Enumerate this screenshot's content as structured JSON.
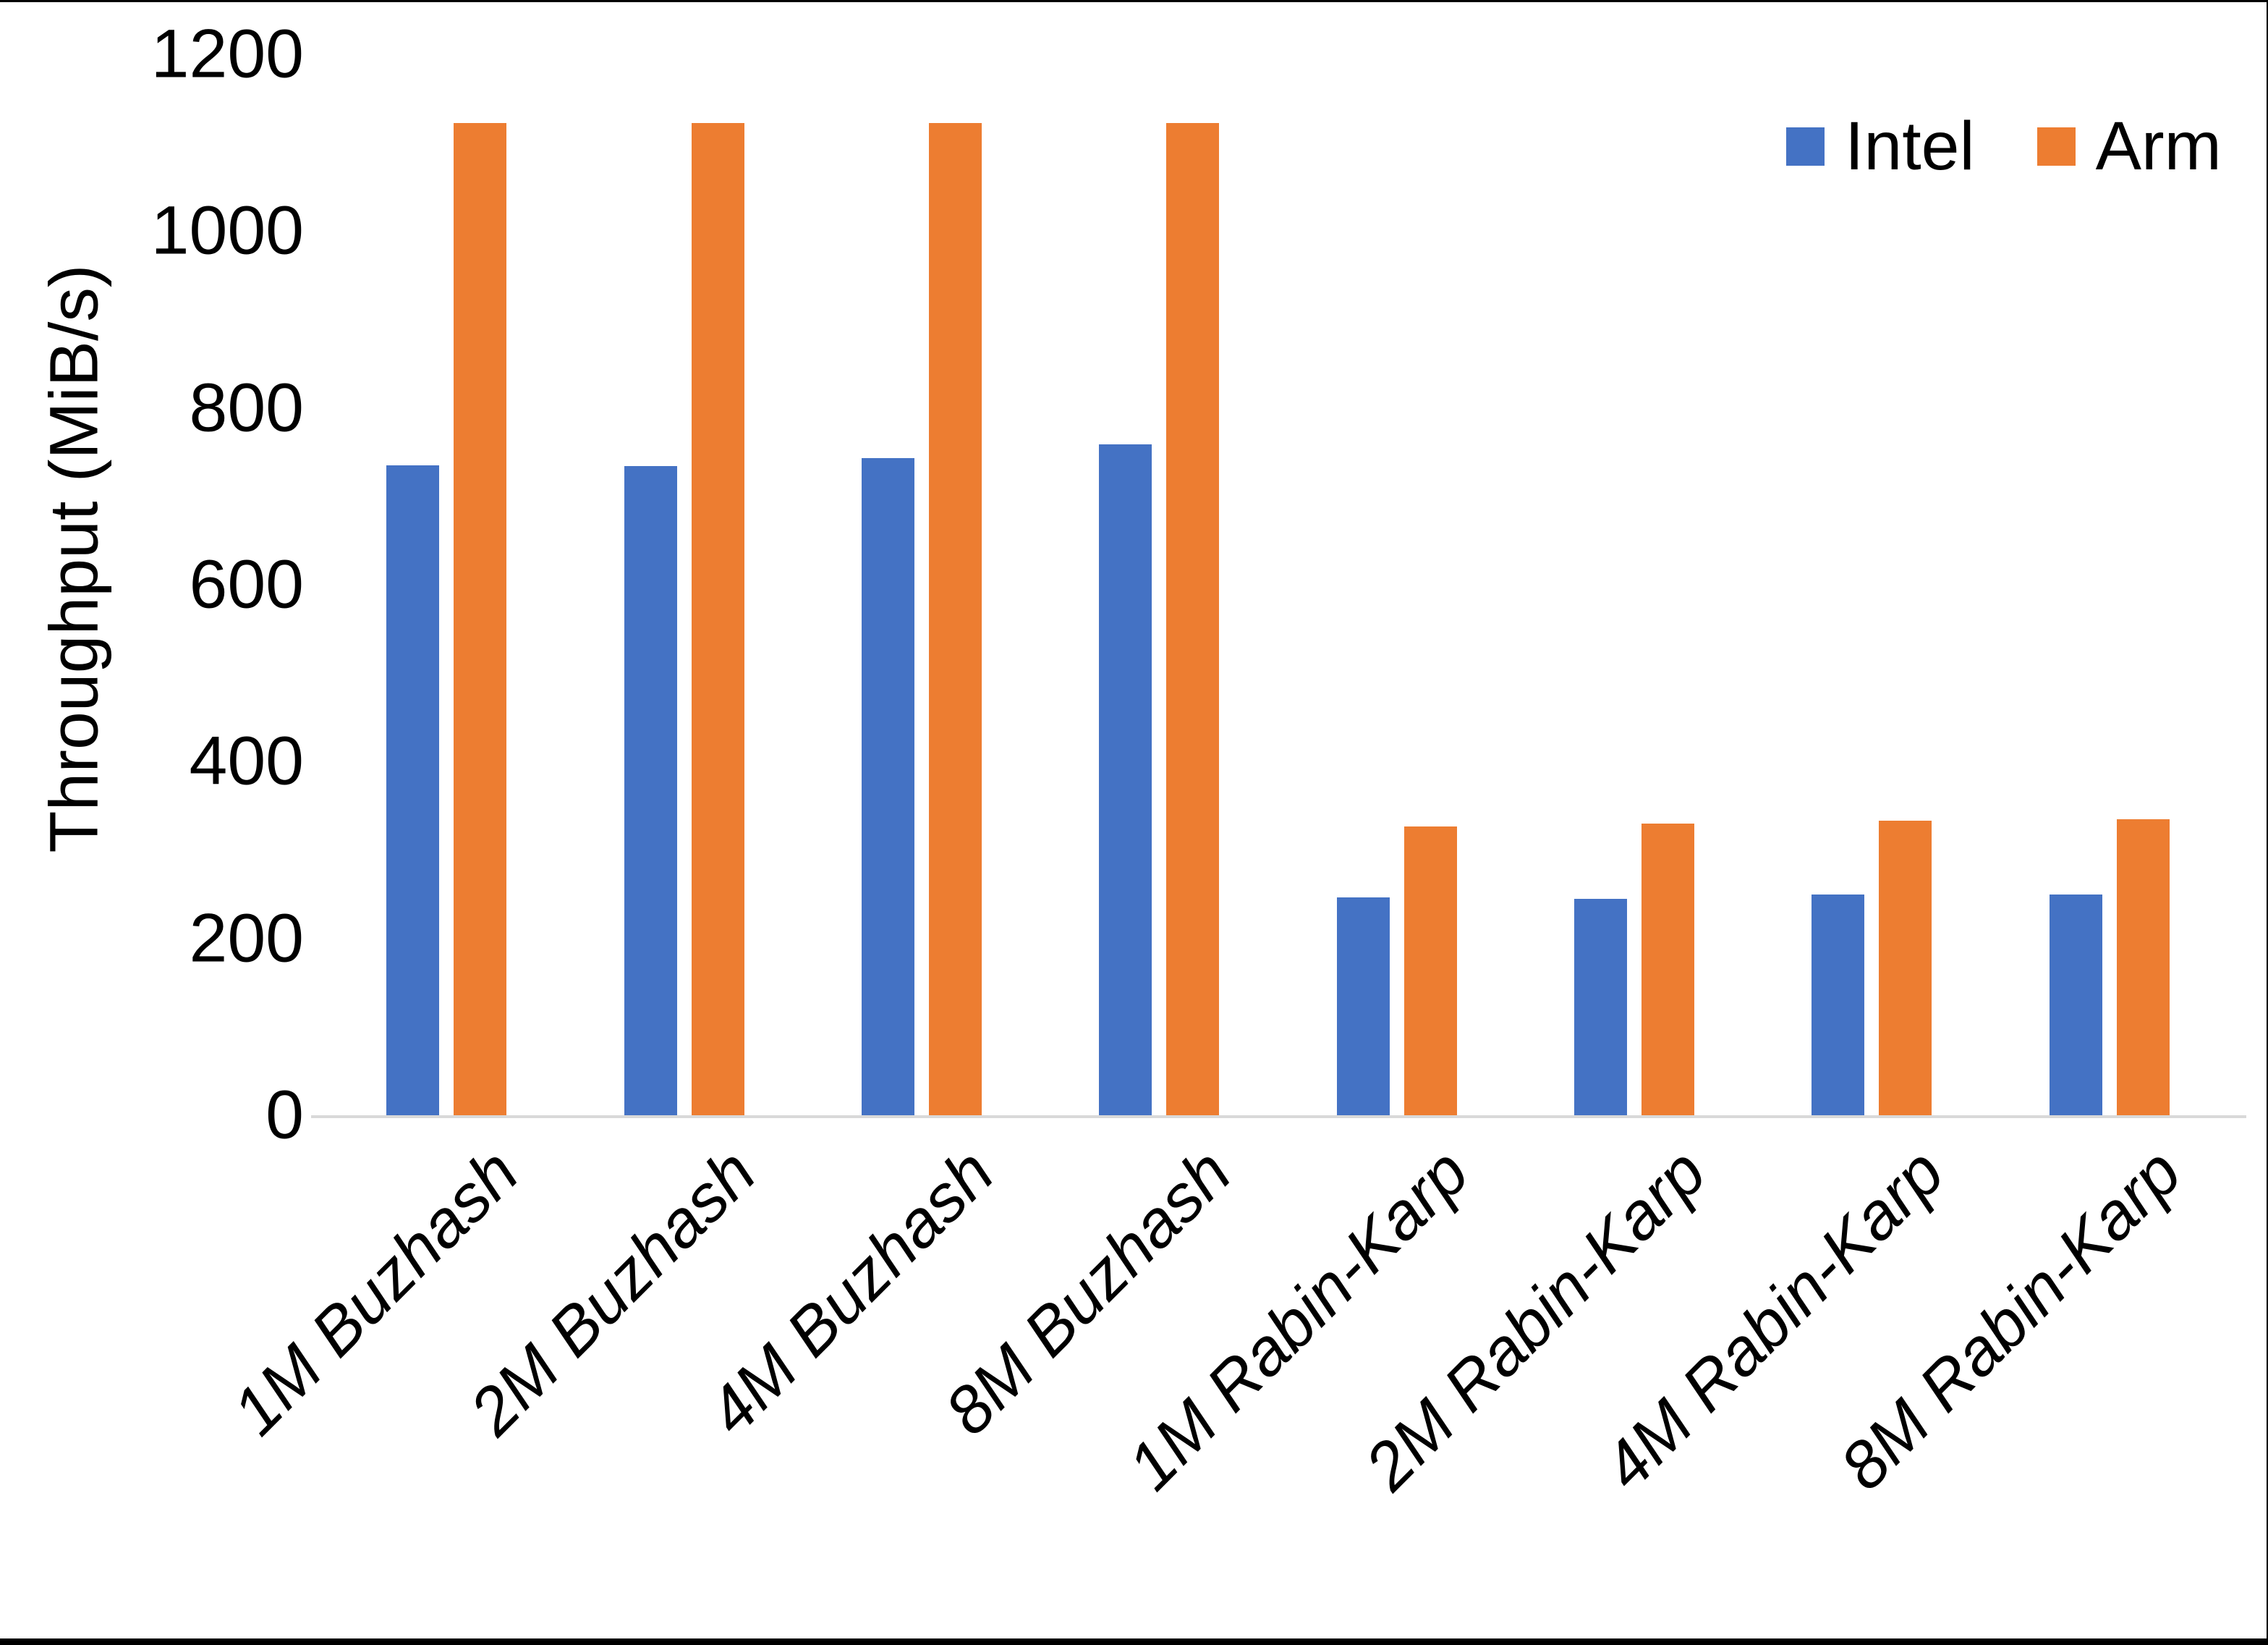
{
  "chart_data": {
    "type": "bar",
    "title": "",
    "xlabel": "",
    "ylabel": "Throughput (MiB/s)",
    "ylim": [
      0,
      1200
    ],
    "yticks": [
      0,
      200,
      400,
      600,
      800,
      1000,
      1200
    ],
    "grid": false,
    "legend_position": "top-right",
    "categories": [
      "1M Buzhash",
      "2M Buzhash",
      "4M Buzhash",
      "8M Buzhash",
      "1M Rabin-Karp",
      "2M Rabin-Karp",
      "4M Rabin-Karp",
      "8M Rabin-Karp"
    ],
    "series": [
      {
        "name": "Intel",
        "color": "#4472C4",
        "values": [
          735,
          734,
          743,
          759,
          246,
          245,
          250,
          250
        ]
      },
      {
        "name": "Arm",
        "color": "#ED7D31",
        "values": [
          1122,
          1122,
          1122,
          1122,
          327,
          330,
          333,
          335
        ]
      }
    ]
  },
  "colors": {
    "axis_line": "#D9D9D9",
    "text": "#000000",
    "background": "#FFFFFF",
    "frame_edge": "#000000"
  }
}
